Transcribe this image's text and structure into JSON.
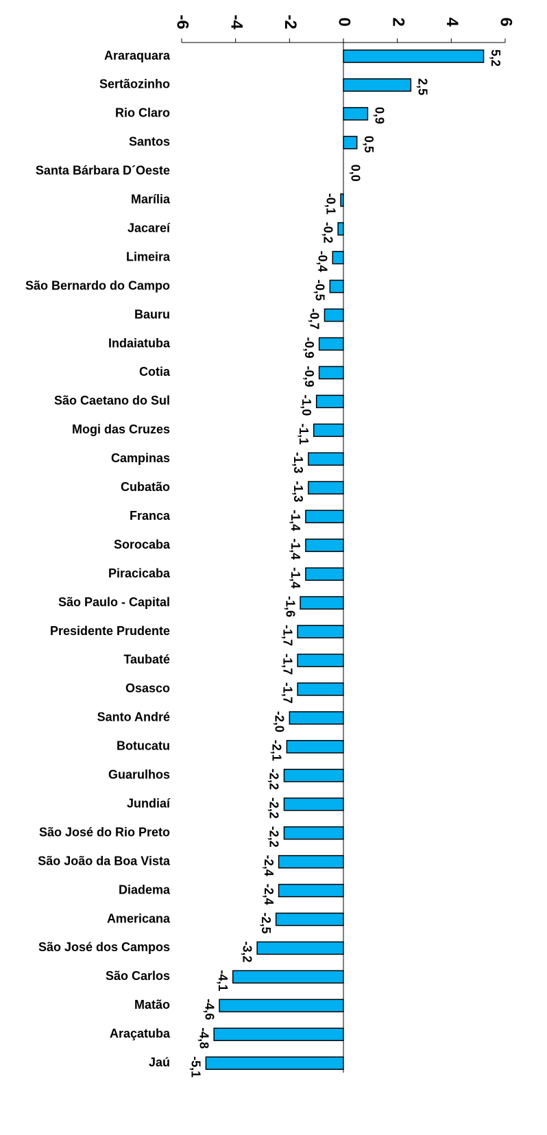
{
  "chart_data": {
    "type": "bar",
    "orientation": "horizontal",
    "categories": [
      "Araraquara",
      "Sertãozinho",
      "Rio Claro",
      "Santos",
      "Santa Bárbara D´Oeste",
      "Marília",
      "Jacareí",
      "Limeira",
      "São Bernardo do Campo",
      "Bauru",
      "Indaiatuba",
      "Cotia",
      "São Caetano do Sul",
      "Mogi das Cruzes",
      "Campinas",
      "Cubatão",
      "Franca",
      "Sorocaba",
      "Piracicaba",
      "São Paulo - Capital",
      "Presidente Prudente",
      "Taubaté",
      "Osasco",
      "Santo André",
      "Botucatu",
      "Guarulhos",
      "Jundiaí",
      "São José do Rio Preto",
      "São João da Boa Vista",
      "Diadema",
      "Americana",
      "São José dos Campos",
      "São Carlos",
      "Matão",
      "Araçatuba",
      "Jaú"
    ],
    "values": [
      5.2,
      2.5,
      0.9,
      0.5,
      0.0,
      -0.1,
      -0.2,
      -0.4,
      -0.5,
      -0.7,
      -0.9,
      -0.9,
      -1.0,
      -1.1,
      -1.3,
      -1.3,
      -1.4,
      -1.4,
      -1.4,
      -1.6,
      -1.7,
      -1.7,
      -1.7,
      -2.0,
      -2.1,
      -2.2,
      -2.2,
      -2.2,
      -2.4,
      -2.4,
      -2.5,
      -3.2,
      -4.1,
      -4.6,
      -4.8,
      -5.1
    ],
    "value_labels": [
      "5,2",
      "2,5",
      "0,9",
      "0,5",
      "0,0",
      "-0,1",
      "-0,2",
      "-0,4",
      "-0,5",
      "-0,7",
      "-0,9",
      "-0,9",
      "-1,0",
      "-1,1",
      "-1,3",
      "-1,3",
      "-1,4",
      "-1,4",
      "-1,4",
      "-1,6",
      "-1,7",
      "-1,7",
      "-1,7",
      "-2,0",
      "-2,1",
      "-2,2",
      "-2,2",
      "-2,2",
      "-2,4",
      "-2,4",
      "-2,5",
      "-3,2",
      "-4,1",
      "-4,6",
      "-4,8",
      "-5,1"
    ],
    "color": "#00b0f0",
    "xlim": [
      -6,
      6
    ],
    "xticks": [
      -6,
      -4,
      -2,
      0,
      2,
      4,
      6
    ]
  }
}
